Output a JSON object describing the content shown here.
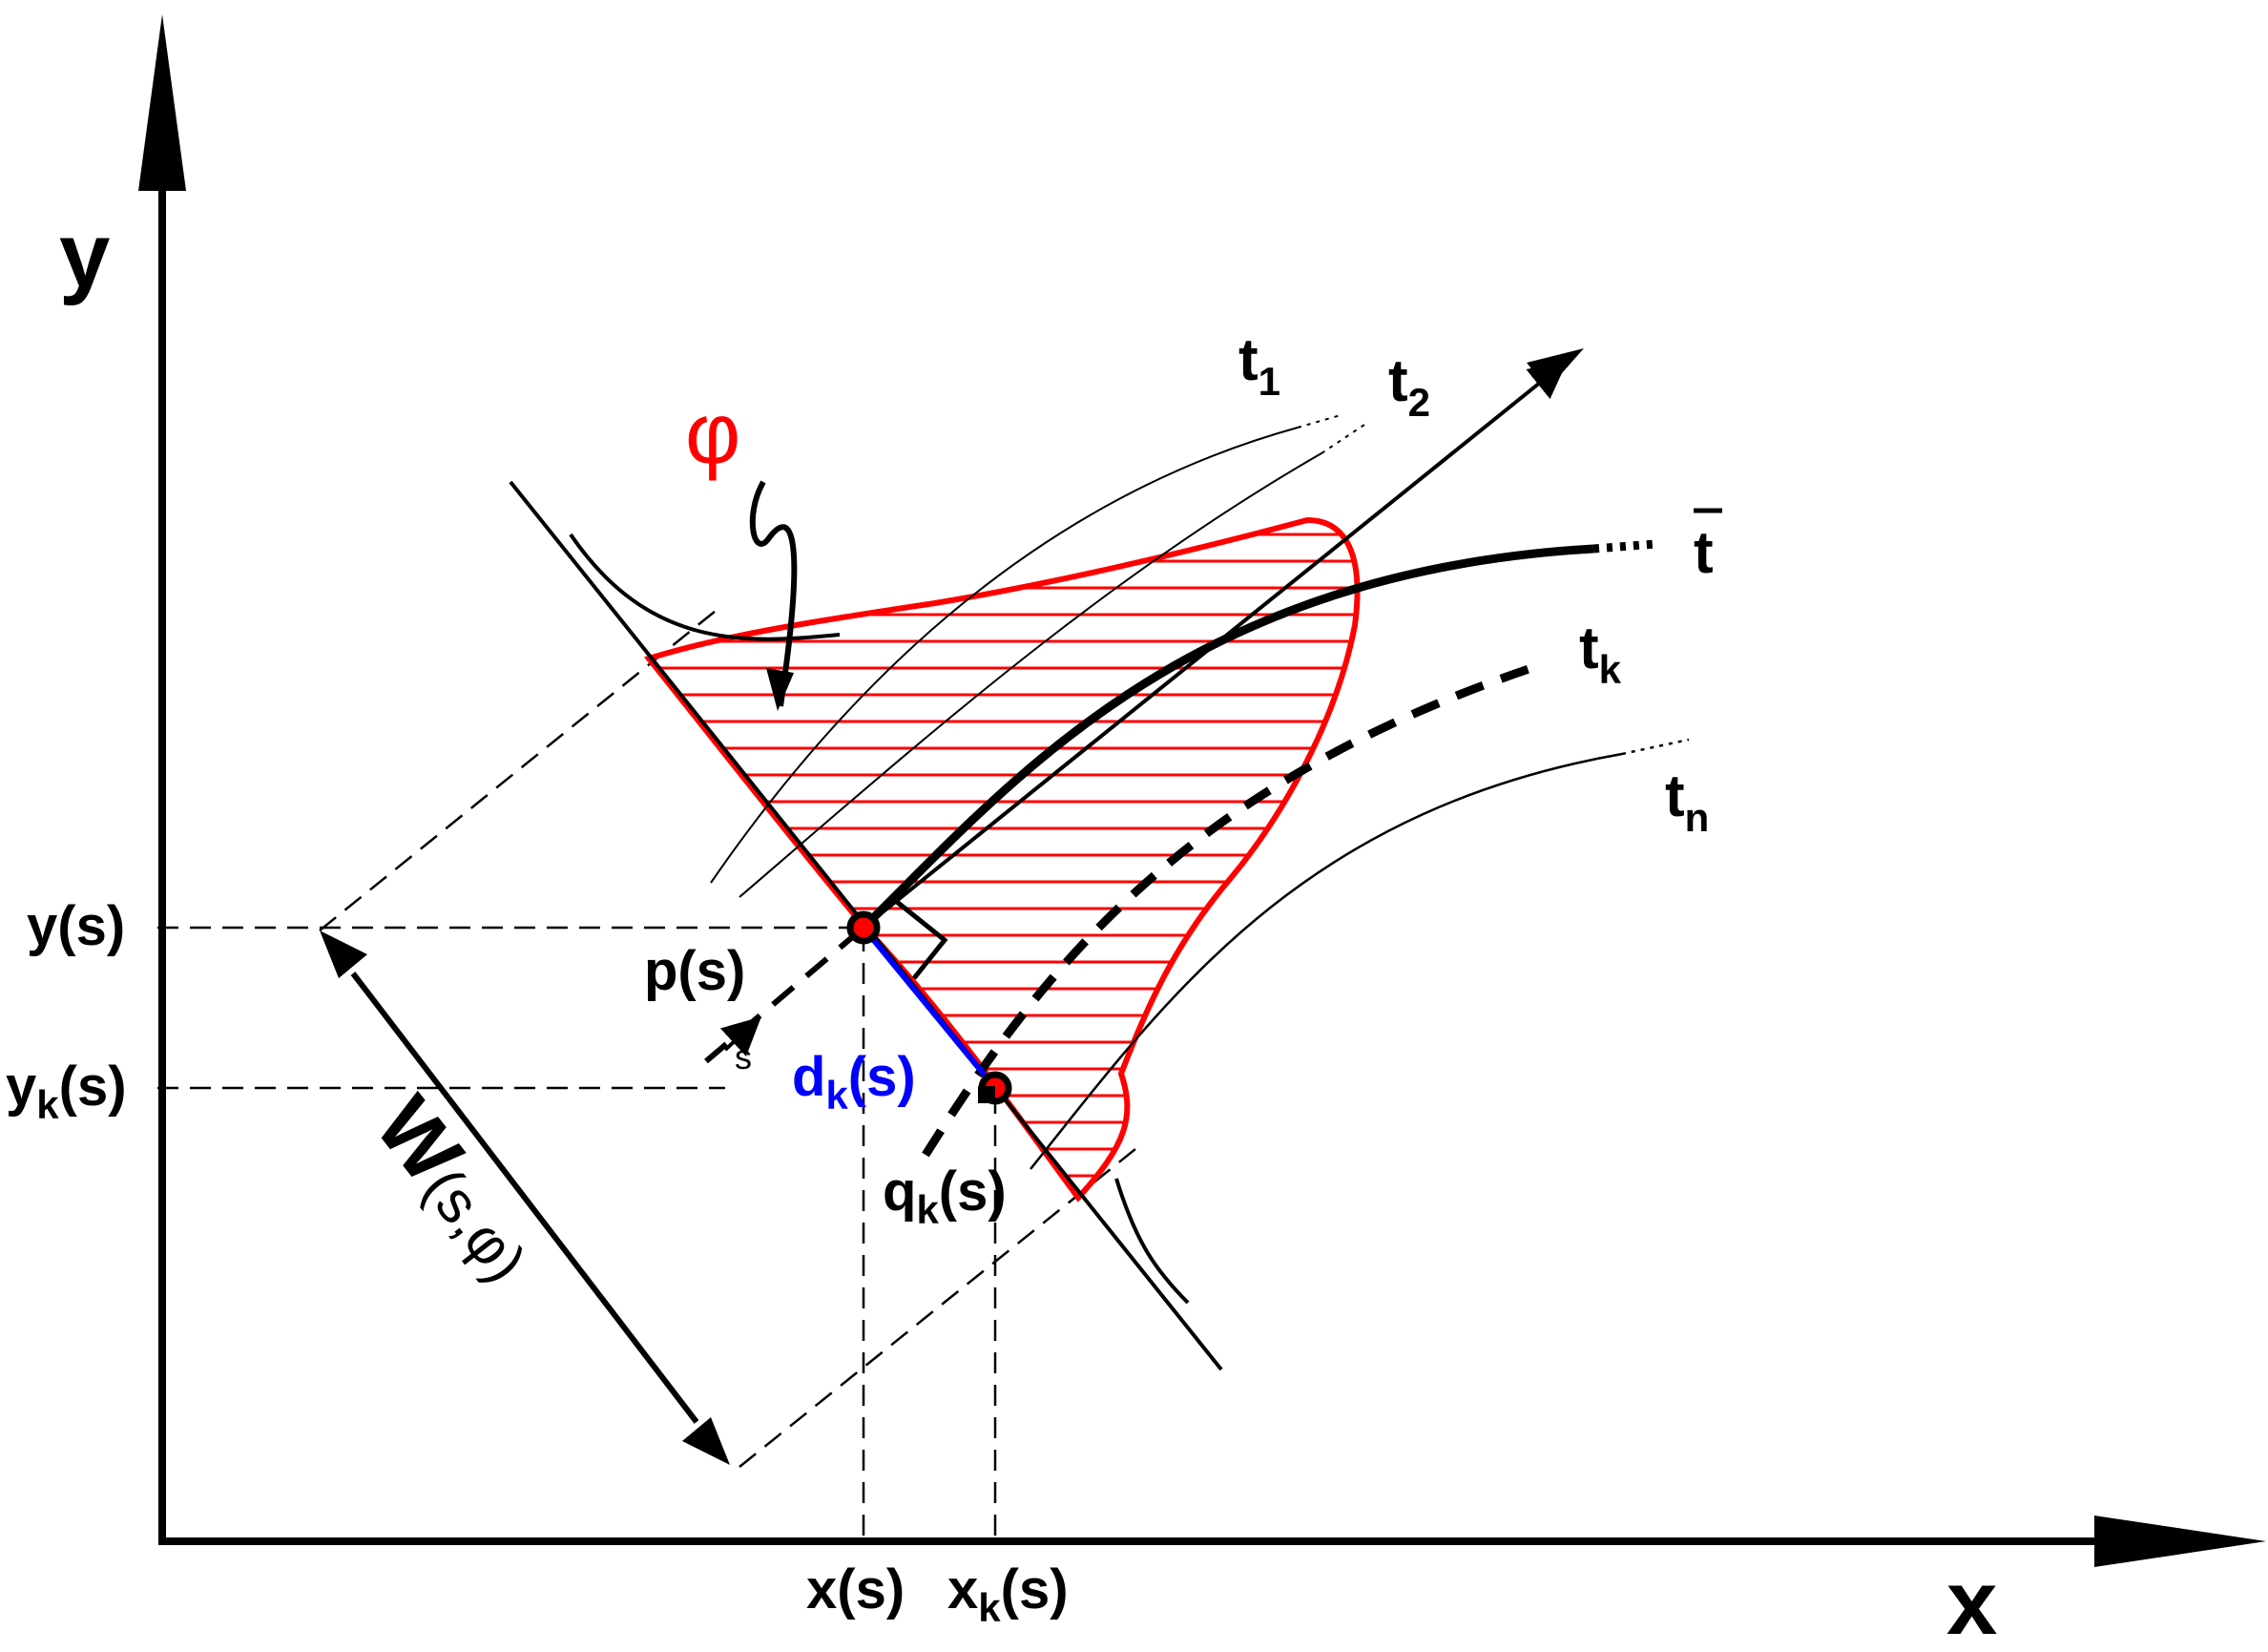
{
  "axes": {
    "x_label": "x",
    "y_label": "y"
  },
  "ticks": {
    "y_s": {
      "main": "y(s)"
    },
    "yk_s": {
      "main": "y",
      "sub": "k",
      "tail": "(s)"
    },
    "x_s": {
      "main": "x(s)"
    },
    "xk_s": {
      "main": "x",
      "sub": "k",
      "tail": "(s)"
    }
  },
  "trajectories": {
    "t1": {
      "main": "t",
      "sub": "1"
    },
    "t2": {
      "main": "t",
      "sub": "2"
    },
    "tbar": {
      "main": "t"
    },
    "tk": {
      "main": "t",
      "sub": "k"
    },
    "tn": {
      "main": "t",
      "sub": "n"
    }
  },
  "points": {
    "p": "p(s)",
    "s": "s",
    "q": {
      "main": "q",
      "sub": "k",
      "tail": "(s)"
    },
    "d": {
      "main": "d",
      "sub": "k",
      "tail": "(s)"
    }
  },
  "region": {
    "phi": "φ"
  },
  "width": {
    "main": "W",
    "args": "(s,φ)"
  },
  "colors": {
    "region": "#ff0000",
    "distance": "#0000ff",
    "ink": "#000000"
  }
}
